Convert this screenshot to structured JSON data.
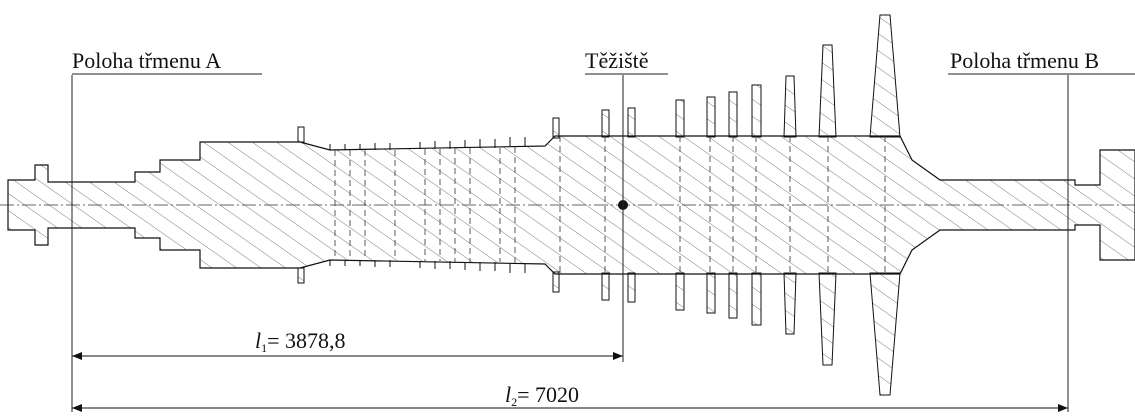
{
  "labels": {
    "bearing_a": "Poloha třmenu A",
    "center_of_gravity": "Těžiště",
    "bearing_b": "Poloha třmenu B"
  },
  "dimensions": [
    {
      "symbol": "l",
      "index": "1",
      "text": "= 3878,8"
    },
    {
      "symbol": "l",
      "index": "2",
      "text": "= 7020"
    }
  ]
}
